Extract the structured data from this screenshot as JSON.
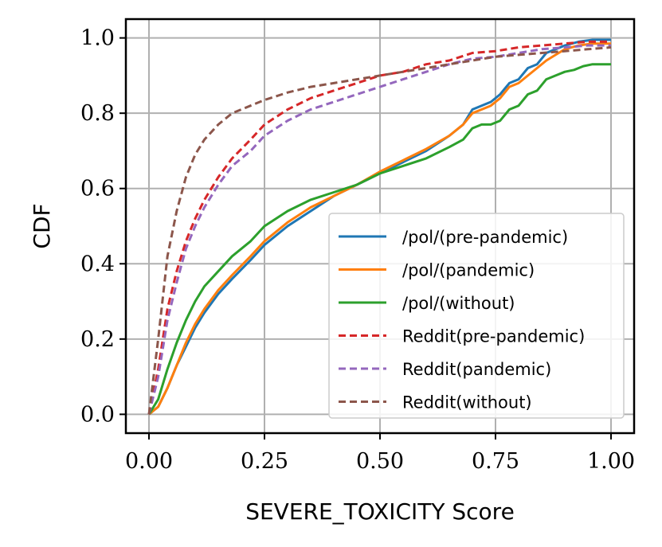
{
  "chart_data": {
    "type": "line",
    "title": "",
    "xlabel": "SEVERE_TOXICITY Score",
    "ylabel": "CDF",
    "xlim": [
      -0.05,
      1.05
    ],
    "ylim": [
      -0.05,
      1.05
    ],
    "grid": true,
    "legend_position": "lower-right",
    "xticks": [
      0.0,
      0.25,
      0.5,
      0.75,
      1.0
    ],
    "xtick_labels": [
      "0.00",
      "0.25",
      "0.50",
      "0.75",
      "1.00"
    ],
    "yticks": [
      0.0,
      0.2,
      0.4,
      0.6,
      0.8,
      1.0
    ],
    "ytick_labels": [
      "0.0",
      "0.2",
      "0.4",
      "0.6",
      "0.8",
      "1.0"
    ],
    "series": [
      {
        "name": "/pol/(pre-pandemic)",
        "color": "#1f77b4",
        "style": "solid",
        "x": [
          0,
          0.02,
          0.04,
          0.06,
          0.08,
          0.1,
          0.12,
          0.15,
          0.18,
          0.22,
          0.25,
          0.3,
          0.35,
          0.4,
          0.45,
          0.5,
          0.55,
          0.6,
          0.65,
          0.68,
          0.7,
          0.72,
          0.74,
          0.76,
          0.78,
          0.8,
          0.82,
          0.84,
          0.86,
          0.88,
          0.9,
          0.93,
          0.96,
          1.0
        ],
        "y": [
          0,
          0.02,
          0.07,
          0.13,
          0.18,
          0.23,
          0.27,
          0.32,
          0.36,
          0.41,
          0.45,
          0.5,
          0.54,
          0.58,
          0.61,
          0.64,
          0.67,
          0.7,
          0.74,
          0.77,
          0.81,
          0.82,
          0.83,
          0.85,
          0.88,
          0.89,
          0.92,
          0.93,
          0.96,
          0.97,
          0.98,
          0.99,
          0.995,
          0.995
        ]
      },
      {
        "name": "/pol/(pandemic)",
        "color": "#ff7f0e",
        "style": "solid",
        "x": [
          0,
          0.02,
          0.04,
          0.06,
          0.08,
          0.1,
          0.12,
          0.15,
          0.18,
          0.22,
          0.25,
          0.3,
          0.35,
          0.4,
          0.45,
          0.5,
          0.55,
          0.6,
          0.65,
          0.68,
          0.7,
          0.72,
          0.74,
          0.76,
          0.78,
          0.8,
          0.82,
          0.84,
          0.86,
          0.88,
          0.9,
          0.93,
          0.96,
          1.0
        ],
        "y": [
          0,
          0.02,
          0.07,
          0.13,
          0.19,
          0.24,
          0.28,
          0.33,
          0.37,
          0.42,
          0.46,
          0.51,
          0.55,
          0.58,
          0.61,
          0.645,
          0.675,
          0.705,
          0.74,
          0.77,
          0.8,
          0.81,
          0.82,
          0.84,
          0.87,
          0.88,
          0.9,
          0.92,
          0.94,
          0.955,
          0.97,
          0.98,
          0.985,
          0.985
        ]
      },
      {
        "name": "/pol/(without)",
        "color": "#2ca02c",
        "style": "solid",
        "x": [
          0,
          0.02,
          0.04,
          0.06,
          0.08,
          0.1,
          0.12,
          0.15,
          0.18,
          0.22,
          0.25,
          0.3,
          0.35,
          0.4,
          0.45,
          0.5,
          0.55,
          0.6,
          0.65,
          0.68,
          0.7,
          0.72,
          0.74,
          0.76,
          0.78,
          0.8,
          0.82,
          0.84,
          0.86,
          0.88,
          0.9,
          0.92,
          0.94,
          0.96,
          1.0
        ],
        "y": [
          0,
          0.04,
          0.12,
          0.19,
          0.25,
          0.3,
          0.34,
          0.38,
          0.42,
          0.46,
          0.5,
          0.54,
          0.57,
          0.59,
          0.61,
          0.64,
          0.66,
          0.68,
          0.71,
          0.73,
          0.76,
          0.77,
          0.77,
          0.78,
          0.81,
          0.82,
          0.85,
          0.86,
          0.89,
          0.9,
          0.91,
          0.915,
          0.925,
          0.93,
          0.93
        ]
      },
      {
        "name": "Reddit(pre-pandemic)",
        "color": "#d62728",
        "style": "dashed",
        "x": [
          0,
          0.02,
          0.04,
          0.06,
          0.08,
          0.1,
          0.12,
          0.15,
          0.18,
          0.22,
          0.25,
          0.3,
          0.35,
          0.4,
          0.45,
          0.5,
          0.55,
          0.6,
          0.65,
          0.7,
          0.75,
          0.8,
          0.85,
          0.9,
          0.95,
          1.0
        ],
        "y": [
          0,
          0.12,
          0.28,
          0.38,
          0.46,
          0.52,
          0.57,
          0.63,
          0.68,
          0.73,
          0.77,
          0.81,
          0.84,
          0.86,
          0.88,
          0.9,
          0.91,
          0.93,
          0.94,
          0.96,
          0.965,
          0.975,
          0.98,
          0.985,
          0.99,
          0.99
        ]
      },
      {
        "name": "Reddit(pandemic)",
        "color": "#9467bd",
        "style": "dashed",
        "x": [
          0,
          0.02,
          0.04,
          0.06,
          0.08,
          0.1,
          0.12,
          0.15,
          0.18,
          0.22,
          0.25,
          0.3,
          0.35,
          0.4,
          0.45,
          0.5,
          0.55,
          0.6,
          0.65,
          0.7,
          0.75,
          0.8,
          0.85,
          0.9,
          0.95,
          1.0
        ],
        "y": [
          0,
          0.1,
          0.25,
          0.35,
          0.44,
          0.5,
          0.55,
          0.61,
          0.66,
          0.7,
          0.74,
          0.78,
          0.81,
          0.83,
          0.85,
          0.87,
          0.89,
          0.91,
          0.93,
          0.945,
          0.95,
          0.96,
          0.97,
          0.975,
          0.98,
          0.98
        ]
      },
      {
        "name": "Reddit(without)",
        "color": "#8c564b",
        "style": "dashed",
        "x": [
          0,
          0.02,
          0.04,
          0.06,
          0.08,
          0.1,
          0.12,
          0.15,
          0.18,
          0.22,
          0.25,
          0.3,
          0.35,
          0.4,
          0.45,
          0.5,
          0.55,
          0.6,
          0.65,
          0.7,
          0.75,
          0.8,
          0.85,
          0.9,
          0.95,
          1.0
        ],
        "y": [
          0,
          0.2,
          0.42,
          0.54,
          0.63,
          0.69,
          0.73,
          0.77,
          0.8,
          0.82,
          0.835,
          0.855,
          0.87,
          0.88,
          0.89,
          0.9,
          0.91,
          0.92,
          0.93,
          0.94,
          0.95,
          0.955,
          0.96,
          0.965,
          0.97,
          0.975
        ]
      }
    ]
  }
}
